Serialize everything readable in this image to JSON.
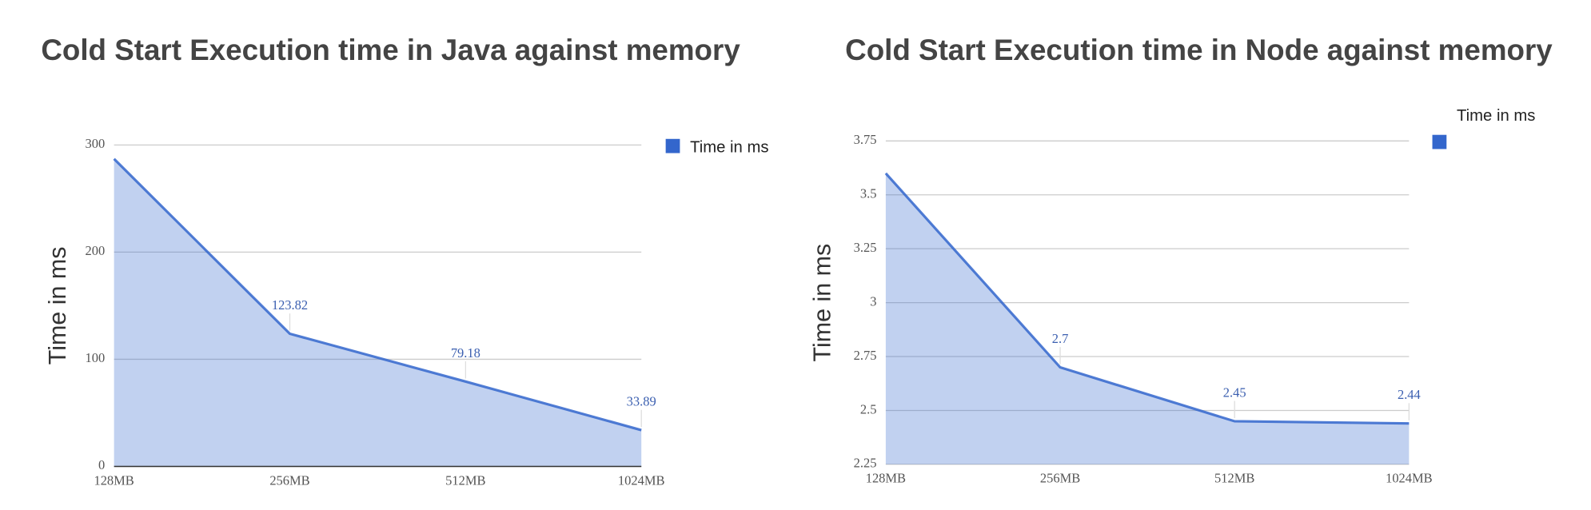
{
  "chart_data": [
    {
      "type": "area",
      "title": "Cold Start Execution time in Java against memory",
      "y_label": "Time in ms",
      "categories": [
        "128MB",
        "256MB",
        "512MB",
        "1024MB"
      ],
      "series": [
        {
          "name": "Time in ms",
          "color": "#3366cc",
          "values": [
            287,
            123.82,
            79.18,
            33.89
          ],
          "value_labels": [
            null,
            "123.82",
            "79.18",
            "33.89"
          ]
        }
      ],
      "ylim": [
        0,
        300
      ],
      "yticks": [
        0,
        100,
        200,
        300
      ],
      "grid": true,
      "legend": "top-right"
    },
    {
      "type": "area",
      "title": "Cold Start Execution time in Node against memory",
      "y_label": "Time in ms",
      "categories": [
        "128MB",
        "256MB",
        "512MB",
        "1024MB"
      ],
      "series": [
        {
          "name": "Time in ms",
          "color": "#3366cc",
          "values": [
            3.6,
            2.7,
            2.45,
            2.44
          ],
          "value_labels": [
            null,
            "2.7",
            "2.45",
            "2.44"
          ]
        }
      ],
      "ylim": [
        2.25,
        3.75
      ],
      "yticks": [
        2.25,
        2.5,
        2.75,
        3,
        3.25,
        3.5,
        3.75
      ],
      "grid": true,
      "legend": "top-right"
    }
  ]
}
